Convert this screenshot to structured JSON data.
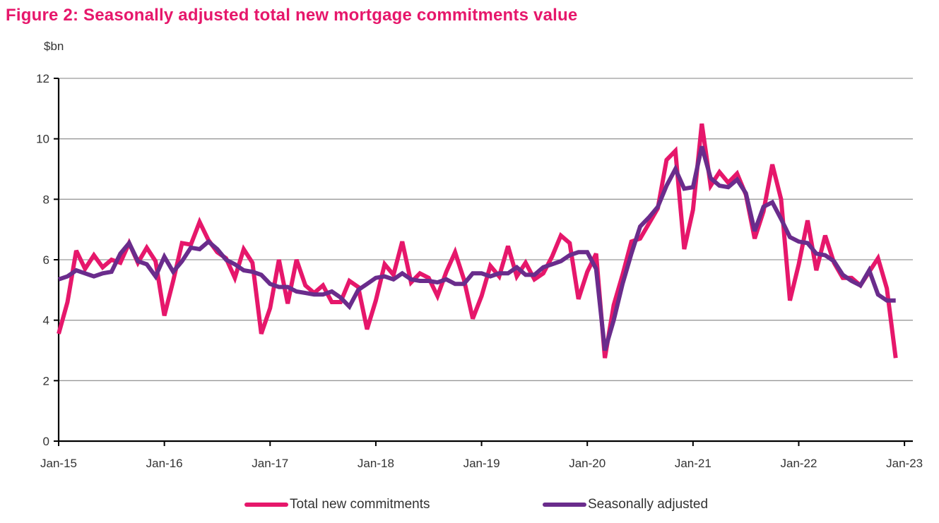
{
  "chart_data": {
    "type": "line",
    "title": "Figure 2:  Seasonally adjusted total new mortgage commitments value",
    "ylabel": "$bn",
    "xlabel": "",
    "ylim": [
      0,
      12
    ],
    "yticks": [
      0,
      2,
      4,
      6,
      8,
      10,
      12
    ],
    "grid": true,
    "legend_position": "bottom",
    "x_start": "Jan-15",
    "x_frequency": "monthly",
    "xtick_labels": [
      "Jan-15",
      "Jan-16",
      "Jan-17",
      "Jan-18",
      "Jan-19",
      "Jan-20",
      "Jan-21",
      "Jan-22",
      "Jan-23"
    ],
    "series": [
      {
        "name": "Total new commitments",
        "color": "#e6176b",
        "values": [
          3.55,
          4.6,
          6.3,
          5.7,
          6.15,
          5.75,
          6.0,
          5.9,
          6.55,
          5.9,
          6.4,
          5.95,
          4.15,
          5.3,
          6.55,
          6.5,
          7.25,
          6.65,
          6.25,
          6.05,
          5.4,
          6.35,
          5.9,
          3.55,
          4.4,
          6.0,
          4.55,
          6.0,
          5.15,
          4.9,
          5.15,
          4.6,
          4.6,
          5.3,
          5.1,
          3.7,
          4.65,
          5.85,
          5.5,
          6.6,
          5.25,
          5.55,
          5.4,
          4.8,
          5.6,
          6.25,
          5.35,
          4.05,
          4.8,
          5.8,
          5.45,
          6.45,
          5.45,
          5.9,
          5.35,
          5.55,
          6.1,
          6.8,
          6.55,
          4.7,
          5.6,
          6.2,
          2.75,
          4.5,
          5.5,
          6.6,
          6.7,
          7.2,
          7.7,
          9.3,
          9.6,
          6.35,
          7.65,
          10.5,
          8.45,
          8.9,
          8.55,
          8.85,
          8.15,
          6.7,
          7.6,
          9.15,
          8.0,
          4.65,
          5.85,
          7.3,
          5.65,
          6.8,
          5.9,
          5.4,
          5.4,
          5.15,
          5.6,
          6.05,
          5.05,
          2.75
        ]
      },
      {
        "name": "Seasonally adjusted",
        "color": "#6a2c8c",
        "values": [
          5.35,
          5.45,
          5.65,
          5.55,
          5.45,
          5.55,
          5.6,
          6.2,
          6.55,
          5.95,
          5.85,
          5.45,
          6.1,
          5.6,
          5.95,
          6.4,
          6.35,
          6.6,
          6.35,
          6.0,
          5.85,
          5.65,
          5.6,
          5.5,
          5.2,
          5.1,
          5.1,
          4.95,
          4.9,
          4.85,
          4.85,
          4.95,
          4.75,
          4.45,
          5.0,
          5.2,
          5.4,
          5.45,
          5.35,
          5.55,
          5.35,
          5.3,
          5.3,
          5.25,
          5.35,
          5.2,
          5.2,
          5.55,
          5.55,
          5.45,
          5.55,
          5.55,
          5.75,
          5.5,
          5.5,
          5.75,
          5.85,
          5.95,
          6.15,
          6.25,
          6.25,
          5.7,
          3.0,
          4.0,
          5.2,
          6.2,
          7.1,
          7.4,
          7.75,
          8.45,
          9.0,
          8.35,
          8.4,
          9.75,
          8.7,
          8.45,
          8.4,
          8.65,
          8.2,
          6.95,
          7.75,
          7.9,
          7.35,
          6.75,
          6.6,
          6.55,
          6.2,
          6.15,
          5.95,
          5.5,
          5.3,
          5.15,
          5.65,
          4.85,
          4.65,
          4.65
        ]
      }
    ]
  }
}
